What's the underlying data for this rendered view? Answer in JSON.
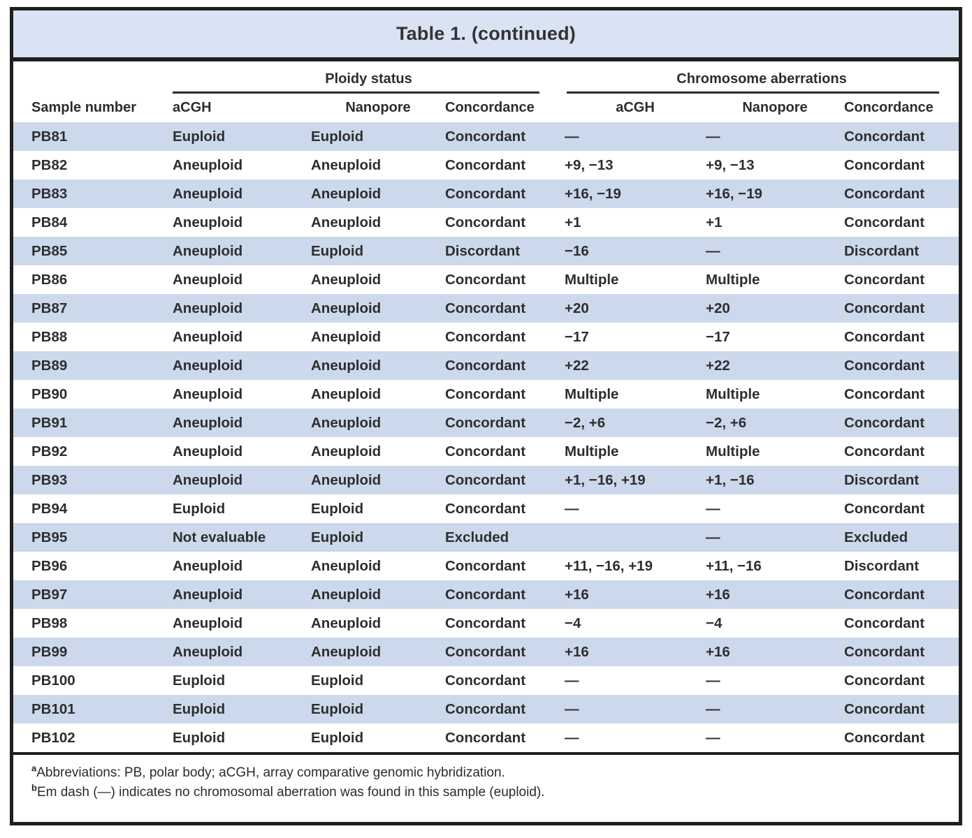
{
  "title": "Table 1. (continued)",
  "table": {
    "groups": [
      "Ploidy status",
      "Chromosome aberrations"
    ],
    "columns": [
      "Sample number",
      "aCGH",
      "Nanopore",
      "Concordance",
      "aCGH",
      "Nanopore",
      "Concordance"
    ],
    "rows": [
      [
        "PB81",
        "Euploid",
        "Euploid",
        "Concordant",
        "—",
        "—",
        "Concordant"
      ],
      [
        "PB82",
        "Aneuploid",
        "Aneuploid",
        "Concordant",
        "+9, −13",
        "+9, −13",
        "Concordant"
      ],
      [
        "PB83",
        "Aneuploid",
        "Aneuploid",
        "Concordant",
        "+16, −19",
        "+16, −19",
        "Concordant"
      ],
      [
        "PB84",
        "Aneuploid",
        "Aneuploid",
        "Concordant",
        "+1",
        "+1",
        "Concordant"
      ],
      [
        "PB85",
        "Aneuploid",
        "Euploid",
        "Discordant",
        "−16",
        "—",
        "Discordant"
      ],
      [
        "PB86",
        "Aneuploid",
        "Aneuploid",
        "Concordant",
        "Multiple",
        "Multiple",
        "Concordant"
      ],
      [
        "PB87",
        "Aneuploid",
        "Aneuploid",
        "Concordant",
        "+20",
        "+20",
        "Concordant"
      ],
      [
        "PB88",
        "Aneuploid",
        "Aneuploid",
        "Concordant",
        "−17",
        "−17",
        "Concordant"
      ],
      [
        "PB89",
        "Aneuploid",
        "Aneuploid",
        "Concordant",
        "+22",
        "+22",
        "Concordant"
      ],
      [
        "PB90",
        "Aneuploid",
        "Aneuploid",
        "Concordant",
        "Multiple",
        "Multiple",
        "Concordant"
      ],
      [
        "PB91",
        "Aneuploid",
        "Aneuploid",
        "Concordant",
        "−2, +6",
        "−2, +6",
        "Concordant"
      ],
      [
        "PB92",
        "Aneuploid",
        "Aneuploid",
        "Concordant",
        "Multiple",
        "Multiple",
        "Concordant"
      ],
      [
        "PB93",
        "Aneuploid",
        "Aneuploid",
        "Concordant",
        "+1, −16, +19",
        "+1, −16",
        "Discordant"
      ],
      [
        "PB94",
        "Euploid",
        "Euploid",
        "Concordant",
        "—",
        "—",
        "Concordant"
      ],
      [
        "PB95",
        "Not evaluable",
        "Euploid",
        "Excluded",
        "",
        "—",
        "Excluded"
      ],
      [
        "PB96",
        "Aneuploid",
        "Aneuploid",
        "Concordant",
        "+11, −16, +19",
        "+11, −16",
        "Discordant"
      ],
      [
        "PB97",
        "Aneuploid",
        "Aneuploid",
        "Concordant",
        "+16",
        "+16",
        "Concordant"
      ],
      [
        "PB98",
        "Aneuploid",
        "Aneuploid",
        "Concordant",
        "−4",
        "−4",
        "Concordant"
      ],
      [
        "PB99",
        "Aneuploid",
        "Aneuploid",
        "Concordant",
        "+16",
        "+16",
        "Concordant"
      ],
      [
        "PB100",
        "Euploid",
        "Euploid",
        "Concordant",
        "—",
        "—",
        "Concordant"
      ],
      [
        "PB101",
        "Euploid",
        "Euploid",
        "Concordant",
        "—",
        "—",
        "Concordant"
      ],
      [
        "PB102",
        "Euploid",
        "Euploid",
        "Concordant",
        "—",
        "—",
        "Concordant"
      ]
    ]
  },
  "footnotes": [
    {
      "marker": "a",
      "text": "Abbreviations: PB, polar body; aCGH, array comparative genomic hybridization."
    },
    {
      "marker": "b",
      "text": "Em dash (—) indicates no chromosomal aberration was found in this sample (euploid)."
    }
  ],
  "colors": {
    "title_bar_background": "#d9e3f3",
    "row_stripe": "#ccd8ec",
    "frame_border": "#1f1f1f",
    "text": "#2d2d2d"
  }
}
